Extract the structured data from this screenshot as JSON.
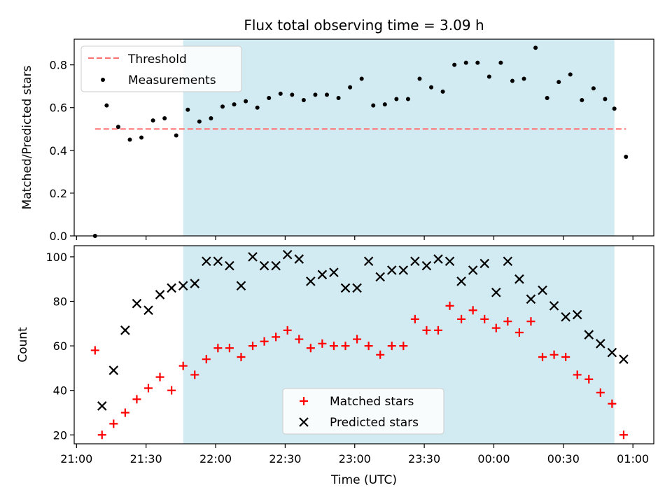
{
  "title": "Flux total observing time = 3.09 h",
  "xlabel": "Time (UTC)",
  "x_ticks": [
    "21:00",
    "21:30",
    "22:00",
    "22:30",
    "23:00",
    "23:30",
    "00:00",
    "00:30",
    "01:00"
  ],
  "colors": {
    "shade": "#add8e6",
    "threshold": "#ff7070",
    "measurement": "#000000",
    "matched": "#ff0000",
    "predicted": "#000000"
  },
  "chart_data": [
    {
      "type": "scatter",
      "ylabel": "Matched/Predicted stars",
      "xlim": [
        "20:59",
        "01:09"
      ],
      "ylim": [
        0,
        0.92
      ],
      "y_ticks": [
        "0.0",
        "0.2",
        "0.4",
        "0.6",
        "0.8"
      ],
      "shaded_span": [
        "21:46",
        "00:52"
      ],
      "legend": {
        "placement": "upper-left",
        "entries": [
          "Threshold",
          "Measurements"
        ]
      },
      "threshold": {
        "name": "Threshold",
        "y": 0.5,
        "x_range": [
          "21:08",
          "00:57"
        ],
        "style": "dashed"
      },
      "series": [
        {
          "name": "Measurements",
          "x": [
            "21:08",
            "21:13",
            "21:18",
            "21:23",
            "21:28",
            "21:33",
            "21:38",
            "21:43",
            "21:48",
            "21:53",
            "21:58",
            "22:03",
            "22:08",
            "22:13",
            "22:18",
            "22:23",
            "22:28",
            "22:33",
            "22:38",
            "22:43",
            "22:48",
            "22:53",
            "22:58",
            "23:03",
            "23:08",
            "23:13",
            "23:18",
            "23:23",
            "23:28",
            "23:33",
            "23:38",
            "23:43",
            "23:48",
            "23:53",
            "23:58",
            "00:03",
            "00:08",
            "00:13",
            "00:18",
            "00:23",
            "00:28",
            "00:33",
            "00:38",
            "00:43",
            "00:48",
            "00:52",
            "00:57"
          ],
          "y": [
            0.0,
            0.61,
            0.51,
            0.45,
            0.46,
            0.54,
            0.55,
            0.47,
            0.59,
            0.535,
            0.55,
            0.605,
            0.615,
            0.63,
            0.6,
            0.645,
            0.665,
            0.66,
            0.635,
            0.66,
            0.66,
            0.645,
            0.695,
            0.735,
            0.61,
            0.615,
            0.64,
            0.64,
            0.735,
            0.695,
            0.675,
            0.8,
            0.81,
            0.81,
            0.745,
            0.81,
            0.725,
            0.735,
            0.88,
            0.645,
            0.72,
            0.755,
            0.635,
            0.69,
            0.64,
            0.595,
            0.37
          ]
        }
      ]
    },
    {
      "type": "scatter",
      "ylabel": "Count",
      "xlim": [
        "20:59",
        "01:09"
      ],
      "ylim": [
        16,
        105
      ],
      "y_ticks": [
        "20",
        "40",
        "60",
        "80",
        "100"
      ],
      "shaded_span": [
        "21:46",
        "00:52"
      ],
      "legend": {
        "placement": "lower-center",
        "entries": [
          "Matched stars",
          "Predicted stars"
        ]
      },
      "series": [
        {
          "name": "Matched stars",
          "marker": "plus",
          "x": [
            "21:08",
            "21:11",
            "21:16",
            "21:21",
            "21:26",
            "21:31",
            "21:36",
            "21:41",
            "21:46",
            "21:51",
            "21:56",
            "22:01",
            "22:06",
            "22:11",
            "22:16",
            "22:21",
            "22:26",
            "22:31",
            "22:36",
            "22:41",
            "22:46",
            "22:51",
            "22:56",
            "23:01",
            "23:06",
            "23:11",
            "23:16",
            "23:21",
            "23:26",
            "23:31",
            "23:36",
            "23:41",
            "23:46",
            "23:51",
            "23:56",
            "00:01",
            "00:06",
            "00:11",
            "00:16",
            "00:21",
            "00:26",
            "00:31",
            "00:36",
            "00:41",
            "00:46",
            "00:51",
            "00:56"
          ],
          "y": [
            58,
            20,
            25,
            30,
            36,
            41,
            46,
            40,
            51,
            47,
            54,
            59,
            59,
            55,
            60,
            62,
            64,
            67,
            63,
            59,
            61,
            60,
            60,
            63,
            60,
            56,
            60,
            60,
            72,
            67,
            67,
            78,
            72,
            76,
            72,
            68,
            71,
            66,
            71,
            55,
            56,
            55,
            47,
            45,
            39,
            34,
            20
          ]
        },
        {
          "name": "Predicted stars",
          "marker": "x",
          "x": [
            "21:11",
            "21:16",
            "21:21",
            "21:26",
            "21:31",
            "21:36",
            "21:41",
            "21:46",
            "21:51",
            "21:56",
            "22:01",
            "22:06",
            "22:11",
            "22:16",
            "22:21",
            "22:26",
            "22:31",
            "22:36",
            "22:41",
            "22:46",
            "22:51",
            "22:56",
            "23:01",
            "23:06",
            "23:11",
            "23:16",
            "23:21",
            "23:26",
            "23:31",
            "23:36",
            "23:41",
            "23:46",
            "23:51",
            "23:56",
            "00:01",
            "00:06",
            "00:11",
            "00:16",
            "00:21",
            "00:26",
            "00:31",
            "00:36",
            "00:41",
            "00:46",
            "00:51",
            "00:56"
          ],
          "y": [
            33,
            49,
            67,
            79,
            76,
            83,
            86,
            87,
            88,
            98,
            98,
            96,
            87,
            100,
            96,
            96,
            101,
            99,
            89,
            92,
            93,
            86,
            86,
            98,
            91,
            94,
            94,
            98,
            96,
            99,
            98,
            89,
            94,
            97,
            84,
            98,
            90,
            81,
            85,
            78,
            73,
            74,
            65,
            61,
            57,
            54
          ]
        }
      ]
    }
  ]
}
